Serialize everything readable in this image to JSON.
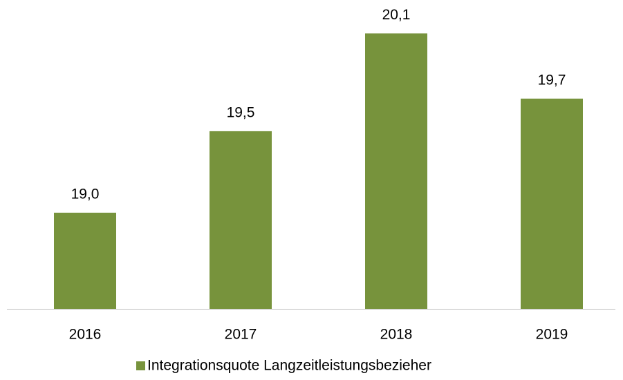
{
  "chart_data": {
    "type": "bar",
    "categories": [
      "2016",
      "2017",
      "2018",
      "2019"
    ],
    "series": [
      {
        "name": "Integrationsquote Langzeitleistungsbezieher",
        "color": "#77933c",
        "values": [
          19.0,
          19.5,
          20.1,
          19.7
        ],
        "value_labels": [
          "19,0",
          "19,5",
          "20,1",
          "19,7"
        ]
      }
    ],
    "ylim": [
      18.41,
      20.2
    ],
    "legend": "bottom"
  }
}
